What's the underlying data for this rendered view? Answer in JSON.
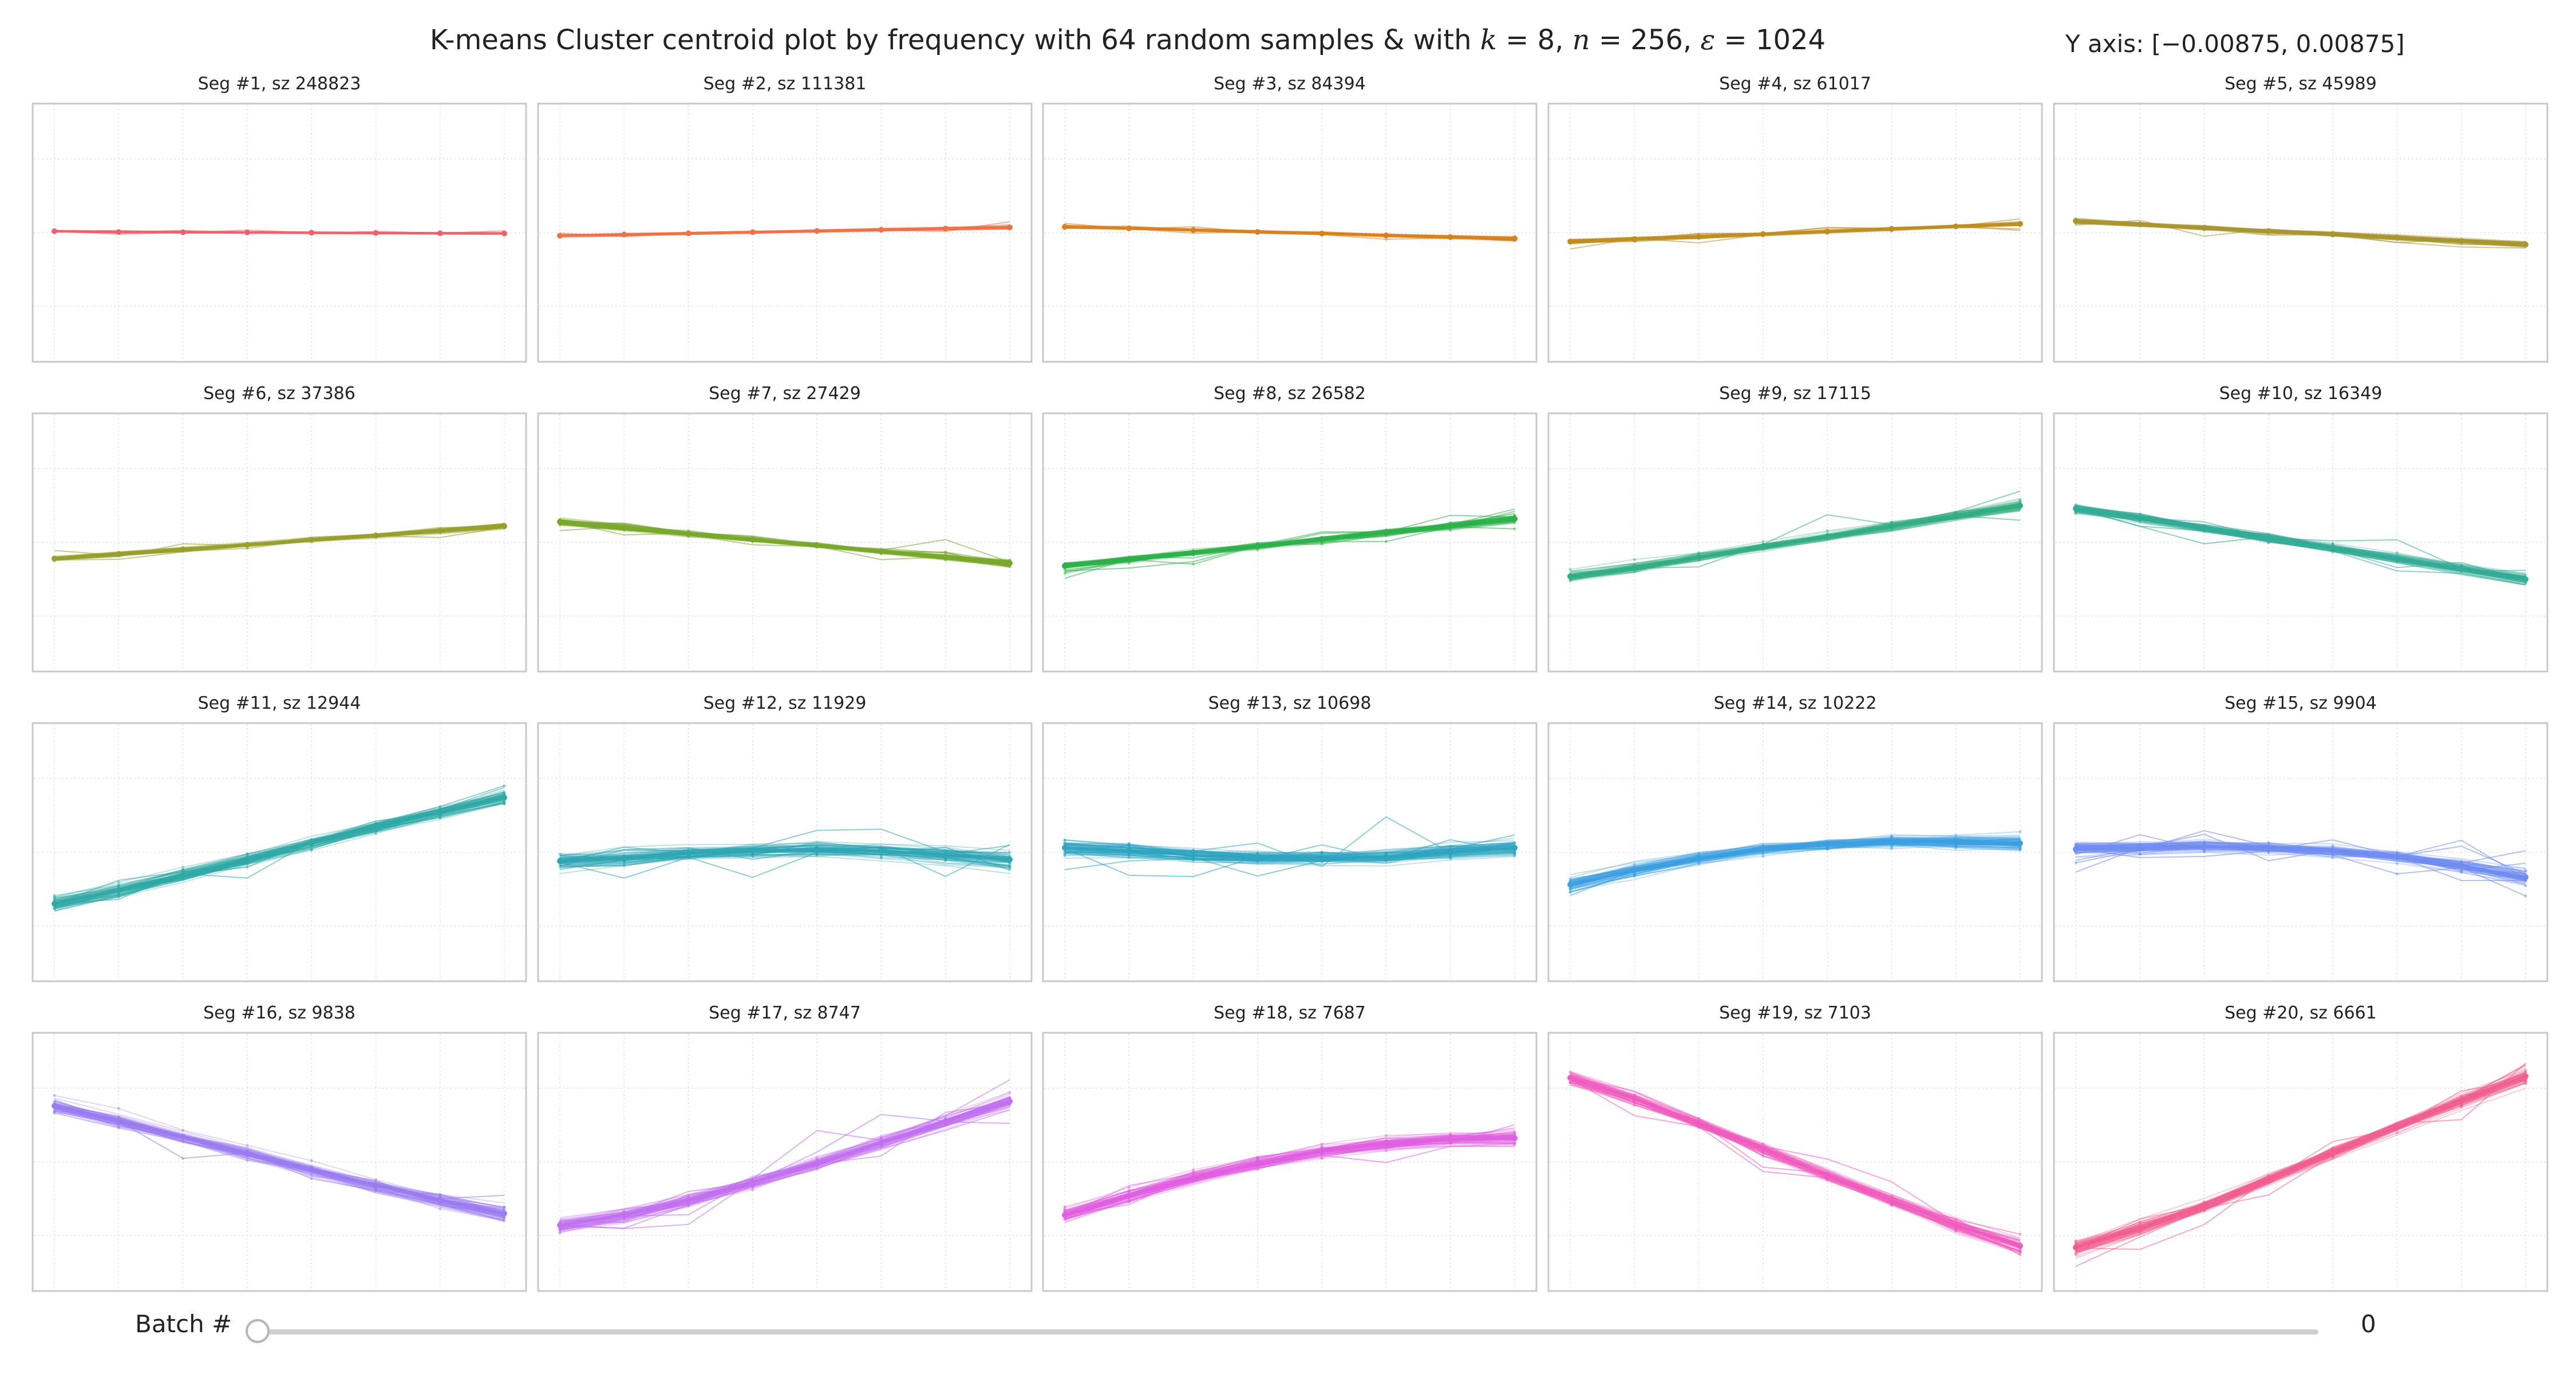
{
  "title_parts": {
    "prefix": "K-means Cluster centroid plot by frequency with 64 random samples & with ",
    "k_var": "k",
    "k_val": " = 8, ",
    "n_var": "n",
    "n_val": " = 256, ",
    "eps_var": "ε",
    "eps_val": " = 1024"
  },
  "yaxis_range": "Y axis: [−0.00875, 0.00875]",
  "slider": {
    "label": "Batch #",
    "value": "0",
    "position": 0
  },
  "chart_data": {
    "type": "line",
    "layout": "grid 4x5",
    "samples_per_panel": 64,
    "x": [
      1,
      2,
      3,
      4,
      5,
      6,
      7,
      8
    ],
    "ylim": [
      -0.00875,
      0.00875
    ],
    "grid": true,
    "legend": "none",
    "panels": [
      {
        "title": "Seg #1, sz 248823",
        "color": "#f0616e",
        "centroid": [
          0.0001,
          5e-05,
          3e-05,
          2e-05,
          0.0,
          -2e-05,
          -4e-05,
          -5e-05
        ],
        "spread": 3e-05
      },
      {
        "title": "Seg #2, sz 111381",
        "color": "#ef7147",
        "centroid": [
          -0.0002,
          -0.00012,
          -4e-05,
          4e-05,
          0.00012,
          0.0002,
          0.00028,
          0.00036
        ],
        "spread": 5e-05
      },
      {
        "title": "Seg #3, sz 84394",
        "color": "#d9801f",
        "centroid": [
          0.0004,
          0.00029,
          0.00018,
          6e-05,
          -6e-05,
          -0.00018,
          -0.0003,
          -0.0004
        ],
        "spread": 6e-05
      },
      {
        "title": "Seg #4, sz 61017",
        "color": "#bf8e22",
        "centroid": [
          -0.0006,
          -0.00043,
          -0.00026,
          -9e-05,
          9e-05,
          0.00026,
          0.00043,
          0.0006
        ],
        "spread": 8e-05
      },
      {
        "title": "Seg #5, sz 45989",
        "color": "#a99630",
        "centroid": [
          0.0008,
          0.00057,
          0.00034,
          0.00011,
          -0.00011,
          -0.00034,
          -0.00057,
          -0.0008
        ],
        "spread": 0.0001
      },
      {
        "title": "Seg #6, sz 37386",
        "color": "#97a02c",
        "centroid": [
          -0.0011,
          -0.00079,
          -0.00047,
          -0.00016,
          0.00016,
          0.00047,
          0.00079,
          0.0011
        ],
        "spread": 0.0001
      },
      {
        "title": "Seg #7, sz 27429",
        "color": "#78a82c",
        "centroid": [
          0.0014,
          0.001,
          0.0006,
          0.0002,
          -0.0002,
          -0.0006,
          -0.001,
          -0.0014
        ],
        "spread": 0.00013
      },
      {
        "title": "Seg #8, sz 26582",
        "color": "#2eb04a",
        "centroid": [
          -0.0016,
          -0.00114,
          -0.00069,
          -0.00023,
          0.00023,
          0.00069,
          0.00114,
          0.0016
        ],
        "spread": 0.00016
      },
      {
        "title": "Seg #9, sz 17115",
        "color": "#34ad82",
        "centroid": [
          -0.0023,
          -0.0017,
          -0.001,
          -0.0003,
          0.0004,
          0.0011,
          0.0018,
          0.0025
        ],
        "spread": 0.0002
      },
      {
        "title": "Seg #10, sz 16349",
        "color": "#33ab96",
        "centroid": [
          0.0023,
          0.0017,
          0.001,
          0.0003,
          -0.0004,
          -0.0011,
          -0.0018,
          -0.0025
        ],
        "spread": 0.0002
      },
      {
        "title": "Seg #11, sz 12944",
        "color": "#2fa9a5",
        "centroid": [
          -0.0035,
          -0.0026,
          -0.0016,
          -0.0005,
          0.0006,
          0.0017,
          0.0027,
          0.0037
        ],
        "spread": 0.0003
      },
      {
        "title": "Seg #12, sz 11929",
        "color": "#2fa6b3",
        "centroid": [
          -0.0006,
          -0.0004,
          -0.0001,
          0.0001,
          0.0002,
          0.0001,
          -0.0002,
          -0.0005
        ],
        "spread": 0.00035
      },
      {
        "title": "Seg #13, sz 10698",
        "color": "#2ea4c0",
        "centroid": [
          0.0003,
          0.0001,
          -0.0002,
          -0.0004,
          -0.0004,
          -0.0003,
          0.0,
          0.0003
        ],
        "spread": 0.00035
      },
      {
        "title": "Seg #14, sz 10222",
        "color": "#3b9fe0",
        "centroid": [
          -0.0022,
          -0.0012,
          -0.0004,
          0.0002,
          0.0005,
          0.0007,
          0.0007,
          0.0006
        ],
        "spread": 0.0003
      },
      {
        "title": "Seg #15, sz 9904",
        "color": "#6f8df0",
        "centroid": [
          0.0002,
          0.0003,
          0.0004,
          0.0003,
          0.0001,
          -0.0003,
          -0.0009,
          -0.0017
        ],
        "spread": 0.0003
      },
      {
        "title": "Seg #16, sz 9838",
        "color": "#9a7bf0",
        "centroid": [
          0.0038,
          0.0028,
          0.0017,
          0.0006,
          -0.0005,
          -0.0016,
          -0.0026,
          -0.0035
        ],
        "spread": 0.0003
      },
      {
        "title": "Seg #17, sz 8747",
        "color": "#c170ee",
        "centroid": [
          -0.0043,
          -0.0036,
          -0.0026,
          -0.0014,
          -0.0001,
          0.0013,
          0.0027,
          0.0041
        ],
        "spread": 0.0003
      },
      {
        "title": "Seg #18, sz 7687",
        "color": "#df5fe0",
        "centroid": [
          -0.0036,
          -0.0023,
          -0.0011,
          -0.0001,
          0.0007,
          0.0012,
          0.0015,
          0.0016
        ],
        "spread": 0.0003
      },
      {
        "title": "Seg #19, sz 7103",
        "color": "#ee5cbf",
        "centroid": [
          0.0057,
          0.0043,
          0.0026,
          0.0009,
          -0.0009,
          -0.0026,
          -0.0043,
          -0.0057
        ],
        "spread": 0.0003
      },
      {
        "title": "Seg #20, sz 6661",
        "color": "#f0608f",
        "centroid": [
          -0.0058,
          -0.0045,
          -0.003,
          -0.0012,
          0.0006,
          0.0024,
          0.0041,
          0.0058
        ],
        "spread": 0.0003
      }
    ]
  }
}
